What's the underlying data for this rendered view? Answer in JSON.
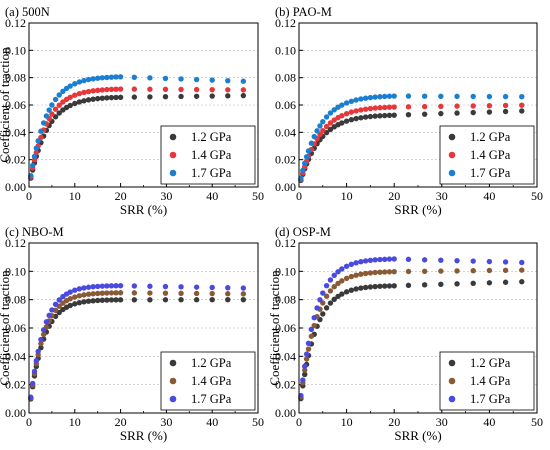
{
  "chart_data": [
    {
      "type": "scatter",
      "panel_label": "(a) 500N",
      "xlabel": "SRR (%)",
      "ylabel": "Coefficient of traction",
      "xlim": [
        0,
        50
      ],
      "ylim": [
        0.0,
        0.12
      ],
      "xticks": [
        "0",
        "10",
        "20",
        "30",
        "40",
        "50"
      ],
      "yticks": [
        "0.00",
        "0.02",
        "0.04",
        "0.06",
        "0.08",
        "0.10",
        "0.12"
      ],
      "grid": "horizontal-dotted",
      "legend_position": "bottom-right",
      "series": [
        {
          "name": "1.2 GPa",
          "color": "#3a3a3a",
          "plateau": 0.066,
          "k": 0.26,
          "end": 0.067
        },
        {
          "name": "1.4 GPa",
          "color": "#e8373a",
          "plateau": 0.072,
          "k": 0.27,
          "end": 0.071
        },
        {
          "name": "1.7 GPa",
          "color": "#1a7fd1",
          "plateau": 0.081,
          "k": 0.27,
          "end": 0.077
        }
      ]
    },
    {
      "type": "scatter",
      "panel_label": "(b) PAO-M",
      "xlabel": "SRR (%)",
      "ylabel": "",
      "xlim": [
        0,
        50
      ],
      "ylim": [
        0.0,
        0.12
      ],
      "xticks": [
        "0",
        "10",
        "20",
        "30",
        "40",
        "50"
      ],
      "yticks": [
        "0.00",
        "0.02",
        "0.04",
        "0.06",
        "0.08",
        "0.10",
        "0.12"
      ],
      "grid": "horizontal-dotted",
      "legend_position": "bottom-right",
      "series": [
        {
          "name": "1.2 GPa",
          "color": "#3a3a3a",
          "plateau": 0.053,
          "k": 0.24,
          "end": 0.056
        },
        {
          "name": "1.4 GPa",
          "color": "#e8373a",
          "plateau": 0.059,
          "k": 0.24,
          "end": 0.06
        },
        {
          "name": "1.7 GPa",
          "color": "#1a7fd1",
          "plateau": 0.067,
          "k": 0.25,
          "end": 0.066
        }
      ]
    },
    {
      "type": "scatter",
      "panel_label": "(c) NBO-M",
      "xlabel": "SRR (%)",
      "ylabel": "Coefficient of traction",
      "xlim": [
        0,
        50
      ],
      "ylim": [
        0.0,
        0.12
      ],
      "xticks": [
        "0",
        "10",
        "20",
        "30",
        "40",
        "50"
      ],
      "yticks": [
        "0.00",
        "0.02",
        "0.04",
        "0.06",
        "0.08",
        "0.10",
        "0.12"
      ],
      "grid": "horizontal-dotted",
      "legend_position": "bottom-right",
      "series": [
        {
          "name": "1.2 GPa",
          "color": "#3a3a3a",
          "plateau": 0.08,
          "k": 0.33,
          "end": 0.08
        },
        {
          "name": "1.4 GPa",
          "color": "#8a5a35",
          "plateau": 0.085,
          "k": 0.33,
          "end": 0.084
        },
        {
          "name": "1.7 GPa",
          "color": "#4a4ae0",
          "plateau": 0.09,
          "k": 0.33,
          "end": 0.088
        }
      ]
    },
    {
      "type": "scatter",
      "panel_label": "(d) OSP-M",
      "xlabel": "SRR (%)",
      "ylabel": "Coefficient of traction",
      "xlim": [
        0,
        50
      ],
      "ylim": [
        0.0,
        0.12
      ],
      "xticks": [
        "0",
        "10",
        "20",
        "30",
        "40",
        "50"
      ],
      "yticks": [
        "0.00",
        "0.02",
        "0.04",
        "0.06",
        "0.08",
        "0.10",
        "0.12"
      ],
      "grid": "horizontal-dotted",
      "legend_position": "bottom-right",
      "series": [
        {
          "name": "1.2 GPa",
          "color": "#3a3a3a",
          "plateau": 0.09,
          "k": 0.3,
          "end": 0.093
        },
        {
          "name": "1.4 GPa",
          "color": "#8a5a35",
          "plateau": 0.1,
          "k": 0.3,
          "end": 0.101
        },
        {
          "name": "1.7 GPa",
          "color": "#4a4ae0",
          "plateau": 0.109,
          "k": 0.3,
          "end": 0.106
        }
      ]
    }
  ]
}
